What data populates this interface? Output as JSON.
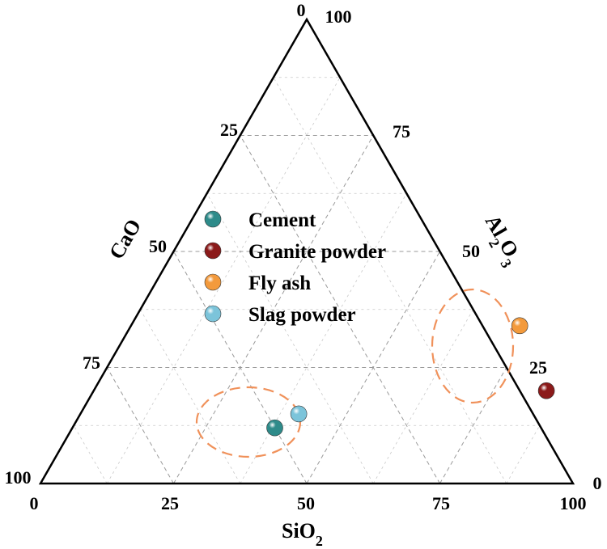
{
  "chart_data": {
    "type": "scatter",
    "subtype": "ternary",
    "title": "",
    "axes": {
      "SiO2": {
        "label": "SiO",
        "sub": "2",
        "ticks": [
          "0",
          "25",
          "50",
          "75",
          "100"
        ]
      },
      "CaO": {
        "label": "CaO",
        "ticks": [
          "0",
          "25",
          "50",
          "75",
          "100"
        ]
      },
      "Al2O3": {
        "label": "Al",
        "sub1": "2",
        "mid": "O",
        "sub2": "3",
        "ticks": [
          "25",
          "50",
          "75",
          "100"
        ]
      }
    },
    "grid": true,
    "legend_position": "center-left",
    "series": [
      {
        "name": "Cement",
        "color": "#2e8b8a",
        "sio2": 38,
        "al2o3": 12,
        "cao": 50
      },
      {
        "name": "Granite powder",
        "color": "#8b1a1a",
        "sio2": 85,
        "al2o3": 20,
        "cao": -5
      },
      {
        "name": "Fly ash",
        "color": "#f39a3c",
        "sio2": 73,
        "al2o3": 34,
        "cao": -7
      },
      {
        "name": "Slag powder",
        "color": "#7cc4da",
        "sio2": 41,
        "al2o3": 15,
        "cao": 44
      }
    ],
    "highlight_ellipses": [
      "Cement + Slag powder cluster",
      "Fly ash + Granite powder cluster"
    ]
  }
}
